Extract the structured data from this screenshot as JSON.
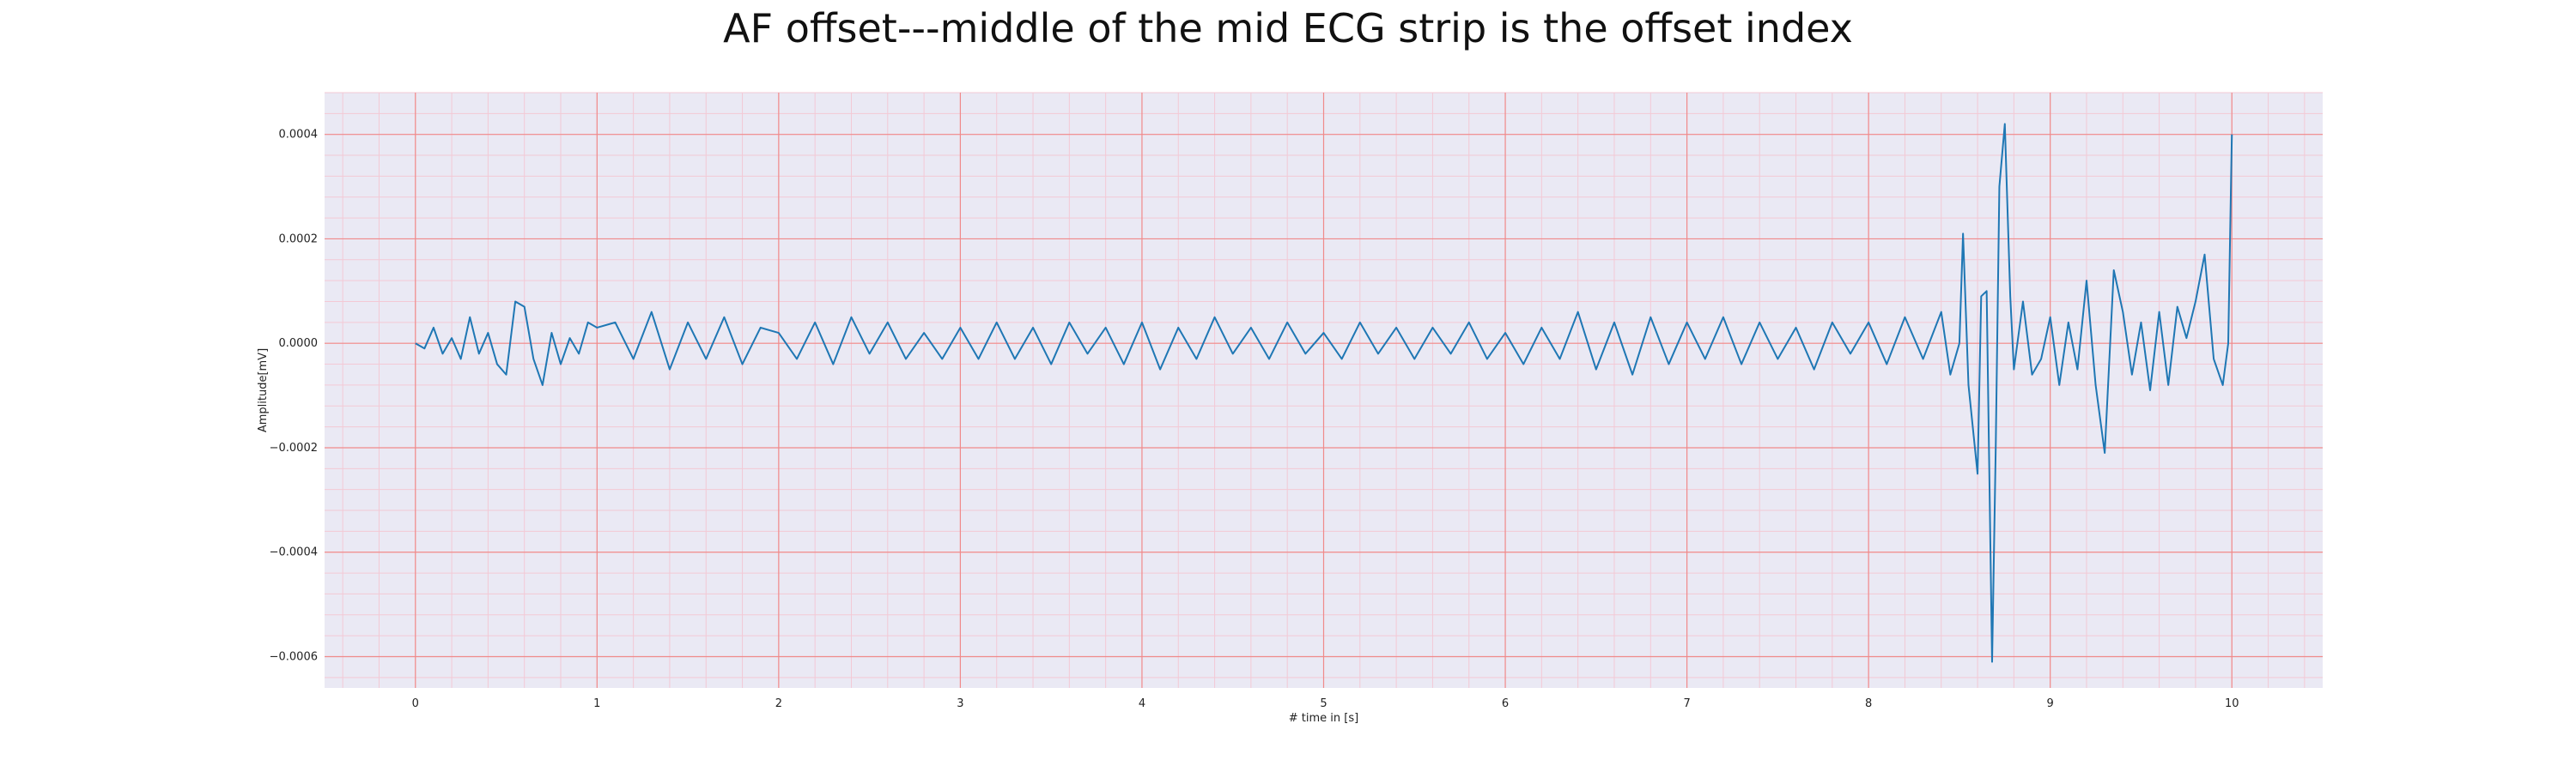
{
  "chart_data": {
    "type": "line",
    "title": "AF offset---middle of the mid ECG strip is the offset index",
    "xlabel": "# time in [s]",
    "ylabel": "Amplitude[mV]",
    "xlim": [
      -0.5,
      10.5
    ],
    "ylim": [
      -0.00066,
      0.00048
    ],
    "x_ticks": [
      0,
      1,
      2,
      3,
      4,
      5,
      6,
      7,
      8,
      9,
      10
    ],
    "x_tick_labels": [
      "0",
      "1",
      "2",
      "3",
      "4",
      "5",
      "6",
      "7",
      "8",
      "9",
      "10"
    ],
    "y_ticks": [
      0.0004,
      0.0002,
      0.0,
      -0.0002,
      -0.0004,
      -0.0006
    ],
    "y_tick_labels": [
      "0.0004",
      "0.0002",
      "0.0000",
      "−0.0002",
      "−0.0004",
      "−0.0006"
    ],
    "grid": {
      "major": true,
      "minor": true
    },
    "colors": {
      "line": "#1f77b4",
      "plot_background": "#eae9f4",
      "major_grid": "#f08a8a",
      "minor_grid": "#f3c9d5"
    },
    "series": [
      {
        "x": [
          0.0,
          0.05,
          0.1,
          0.15,
          0.2,
          0.25,
          0.3,
          0.35,
          0.4,
          0.45,
          0.5,
          0.55,
          0.6,
          0.65,
          0.7,
          0.75,
          0.8,
          0.85,
          0.9,
          0.95,
          1.0,
          1.1,
          1.2,
          1.3,
          1.4,
          1.5,
          1.6,
          1.7,
          1.8,
          1.9,
          2.0,
          2.1,
          2.2,
          2.3,
          2.4,
          2.5,
          2.6,
          2.7,
          2.8,
          2.9,
          3.0,
          3.1,
          3.2,
          3.3,
          3.4,
          3.5,
          3.6,
          3.7,
          3.8,
          3.9,
          4.0,
          4.1,
          4.2,
          4.3,
          4.4,
          4.5,
          4.6,
          4.7,
          4.8,
          4.9,
          5.0,
          5.1,
          5.2,
          5.3,
          5.4,
          5.5,
          5.6,
          5.7,
          5.8,
          5.9,
          6.0,
          6.1,
          6.2,
          6.3,
          6.4,
          6.5,
          6.6,
          6.7,
          6.8,
          6.9,
          7.0,
          7.1,
          7.2,
          7.3,
          7.4,
          7.5,
          7.6,
          7.7,
          7.8,
          7.9,
          8.0,
          8.1,
          8.2,
          8.3,
          8.4,
          8.45,
          8.5,
          8.52,
          8.55,
          8.6,
          8.62,
          8.65,
          8.68,
          8.7,
          8.72,
          8.75,
          8.78,
          8.8,
          8.85,
          8.9,
          8.95,
          9.0,
          9.05,
          9.1,
          9.15,
          9.2,
          9.25,
          9.3,
          9.35,
          9.4,
          9.45,
          9.5,
          9.55,
          9.6,
          9.65,
          9.7,
          9.75,
          9.8,
          9.85,
          9.9,
          9.95,
          9.98,
          10.0
        ],
        "y": [
          0.0,
          -1e-05,
          3e-05,
          -2e-05,
          1e-05,
          -3e-05,
          5e-05,
          -2e-05,
          2e-05,
          -4e-05,
          -6e-05,
          8e-05,
          7e-05,
          -3e-05,
          -8e-05,
          2e-05,
          -4e-05,
          1e-05,
          -2e-05,
          4e-05,
          3e-05,
          4e-05,
          -3e-05,
          6e-05,
          -5e-05,
          4e-05,
          -3e-05,
          5e-05,
          -4e-05,
          3e-05,
          2e-05,
          -3e-05,
          4e-05,
          -4e-05,
          5e-05,
          -2e-05,
          4e-05,
          -3e-05,
          2e-05,
          -3e-05,
          3e-05,
          -3e-05,
          4e-05,
          -3e-05,
          3e-05,
          -4e-05,
          4e-05,
          -2e-05,
          3e-05,
          -4e-05,
          4e-05,
          -5e-05,
          3e-05,
          -3e-05,
          5e-05,
          -2e-05,
          3e-05,
          -3e-05,
          4e-05,
          -2e-05,
          2e-05,
          -3e-05,
          4e-05,
          -2e-05,
          3e-05,
          -3e-05,
          3e-05,
          -2e-05,
          4e-05,
          -3e-05,
          2e-05,
          -4e-05,
          3e-05,
          -3e-05,
          6e-05,
          -5e-05,
          4e-05,
          -6e-05,
          5e-05,
          -4e-05,
          4e-05,
          -3e-05,
          5e-05,
          -4e-05,
          4e-05,
          -3e-05,
          3e-05,
          -5e-05,
          4e-05,
          -2e-05,
          4e-05,
          -4e-05,
          5e-05,
          -3e-05,
          6e-05,
          -6e-05,
          0.0,
          0.00021,
          -8e-05,
          -0.00025,
          9e-05,
          0.0001,
          -0.00061,
          -0.0002,
          0.0003,
          0.00042,
          9e-05,
          -5e-05,
          8e-05,
          -6e-05,
          -3e-05,
          5e-05,
          -8e-05,
          4e-05,
          -5e-05,
          0.00012,
          -8e-05,
          -0.00021,
          0.00014,
          6e-05,
          -6e-05,
          4e-05,
          -9e-05,
          6e-05,
          -8e-05,
          7e-05,
          1e-05,
          8e-05,
          0.00017,
          -3e-05,
          -8e-05,
          0.0,
          0.0004
        ]
      }
    ]
  }
}
